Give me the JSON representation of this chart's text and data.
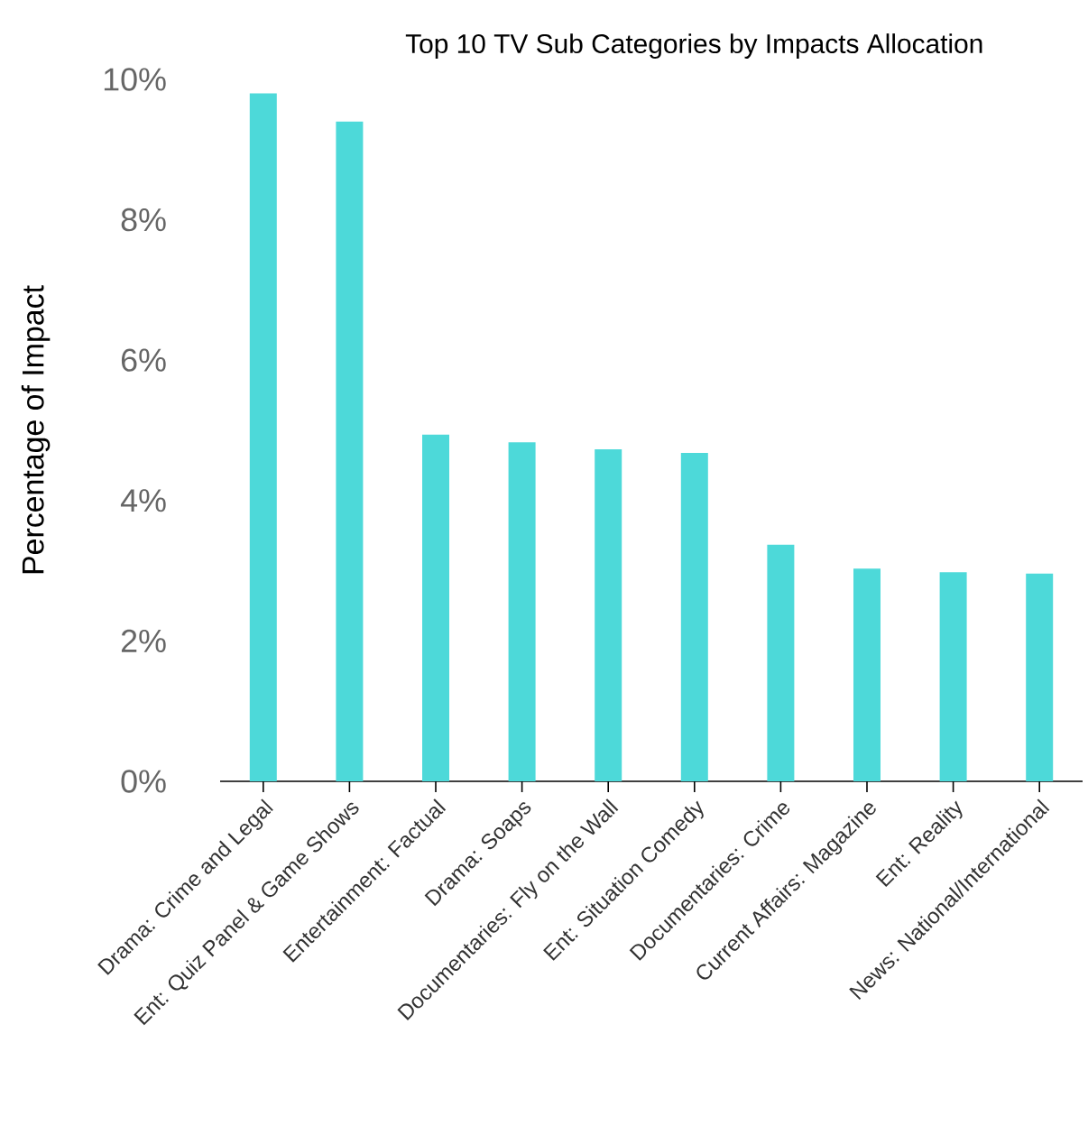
{
  "chart_data": {
    "type": "bar",
    "title": "Top 10 TV Sub Categories by Impacts Allocation",
    "ylabel": "Percentage of Impact",
    "categories": [
      "Drama: Crime and Legal",
      "Ent: Quiz Panel & Game Shows",
      "Entertainment: Factual",
      "Drama: Soaps",
      "Documentaries: Fly on the Wall",
      "Ent: Situation Comedy",
      "Documentaries: Crime",
      "Current Affairs: Magazine",
      "Ent: Reality",
      "News: National/International"
    ],
    "values": [
      9.8,
      9.4,
      4.94,
      4.83,
      4.73,
      4.68,
      3.37,
      3.03,
      2.98,
      2.96
    ],
    "color": "#4dd9d9",
    "ylim": [
      0,
      10
    ],
    "yticks": [
      {
        "value": 0,
        "label": "0%"
      },
      {
        "value": 2,
        "label": "2%"
      },
      {
        "value": 4,
        "label": "4%"
      },
      {
        "value": 6,
        "label": "6%"
      },
      {
        "value": 8,
        "label": "8%"
      },
      {
        "value": 10,
        "label": "10%"
      }
    ]
  }
}
